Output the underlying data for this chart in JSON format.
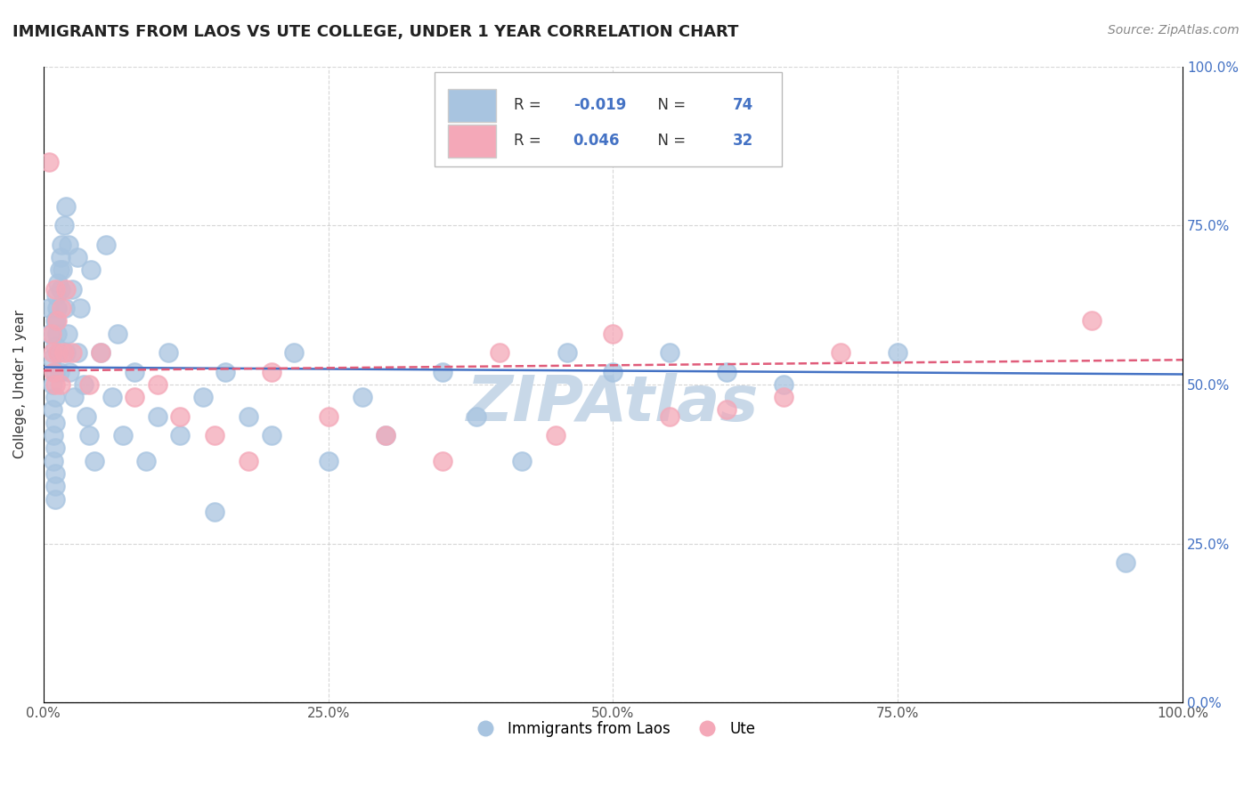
{
  "title": "IMMIGRANTS FROM LAOS VS UTE COLLEGE, UNDER 1 YEAR CORRELATION CHART",
  "source": "Source: ZipAtlas.com",
  "ylabel": "College, Under 1 year",
  "legend_bottom": [
    "Immigrants from Laos",
    "Ute"
  ],
  "r_blue": -0.019,
  "n_blue": 74,
  "r_pink": 0.046,
  "n_pink": 32,
  "xlim": [
    0.0,
    1.0
  ],
  "ylim": [
    0.0,
    1.0
  ],
  "xticks": [
    0.0,
    0.25,
    0.5,
    0.75,
    1.0
  ],
  "yticks": [
    0.0,
    0.25,
    0.5,
    0.75,
    1.0
  ],
  "xticklabels": [
    "0.0%",
    "25.0%",
    "50.0%",
    "75.0%",
    "100.0%"
  ],
  "right_yticklabels": [
    "0.0%",
    "25.0%",
    "50.0%",
    "75.0%",
    "100.0%"
  ],
  "blue_color": "#a8c4e0",
  "pink_color": "#f4a8b8",
  "blue_line_color": "#4472c4",
  "pink_line_color": "#e05c7a",
  "background_color": "#ffffff",
  "watermark_color": "#c8d8e8",
  "watermark_fontsize": 52,
  "blue_x": [
    0.005,
    0.006,
    0.007,
    0.008,
    0.008,
    0.009,
    0.009,
    0.01,
    0.01,
    0.01,
    0.01,
    0.01,
    0.01,
    0.01,
    0.01,
    0.01,
    0.011,
    0.011,
    0.012,
    0.012,
    0.013,
    0.013,
    0.014,
    0.014,
    0.015,
    0.015,
    0.016,
    0.017,
    0.018,
    0.019,
    0.02,
    0.02,
    0.021,
    0.022,
    0.023,
    0.025,
    0.027,
    0.03,
    0.03,
    0.032,
    0.035,
    0.038,
    0.04,
    0.042,
    0.045,
    0.05,
    0.055,
    0.06,
    0.065,
    0.07,
    0.08,
    0.09,
    0.1,
    0.11,
    0.12,
    0.14,
    0.15,
    0.16,
    0.18,
    0.2,
    0.22,
    0.25,
    0.28,
    0.3,
    0.35,
    0.38,
    0.42,
    0.46,
    0.5,
    0.55,
    0.6,
    0.65,
    0.75,
    0.95
  ],
  "blue_y": [
    0.62,
    0.58,
    0.54,
    0.5,
    0.46,
    0.42,
    0.38,
    0.34,
    0.6,
    0.56,
    0.52,
    0.48,
    0.44,
    0.4,
    0.36,
    0.32,
    0.64,
    0.6,
    0.62,
    0.58,
    0.66,
    0.55,
    0.68,
    0.52,
    0.7,
    0.65,
    0.72,
    0.68,
    0.75,
    0.62,
    0.78,
    0.55,
    0.58,
    0.72,
    0.52,
    0.65,
    0.48,
    0.7,
    0.55,
    0.62,
    0.5,
    0.45,
    0.42,
    0.68,
    0.38,
    0.55,
    0.72,
    0.48,
    0.58,
    0.42,
    0.52,
    0.38,
    0.45,
    0.55,
    0.42,
    0.48,
    0.3,
    0.52,
    0.45,
    0.42,
    0.55,
    0.38,
    0.48,
    0.42,
    0.52,
    0.45,
    0.38,
    0.55,
    0.52,
    0.55,
    0.52,
    0.5,
    0.55,
    0.22
  ],
  "pink_x": [
    0.005,
    0.007,
    0.008,
    0.009,
    0.01,
    0.01,
    0.012,
    0.013,
    0.015,
    0.016,
    0.018,
    0.02,
    0.025,
    0.04,
    0.05,
    0.08,
    0.1,
    0.12,
    0.15,
    0.18,
    0.2,
    0.25,
    0.3,
    0.35,
    0.4,
    0.45,
    0.5,
    0.55,
    0.6,
    0.65,
    0.7,
    0.92
  ],
  "pink_y": [
    0.85,
    0.58,
    0.55,
    0.52,
    0.5,
    0.65,
    0.6,
    0.55,
    0.5,
    0.62,
    0.55,
    0.65,
    0.55,
    0.5,
    0.55,
    0.48,
    0.5,
    0.45,
    0.42,
    0.38,
    0.52,
    0.45,
    0.42,
    0.38,
    0.55,
    0.42,
    0.58,
    0.45,
    0.46,
    0.48,
    0.55,
    0.6
  ]
}
